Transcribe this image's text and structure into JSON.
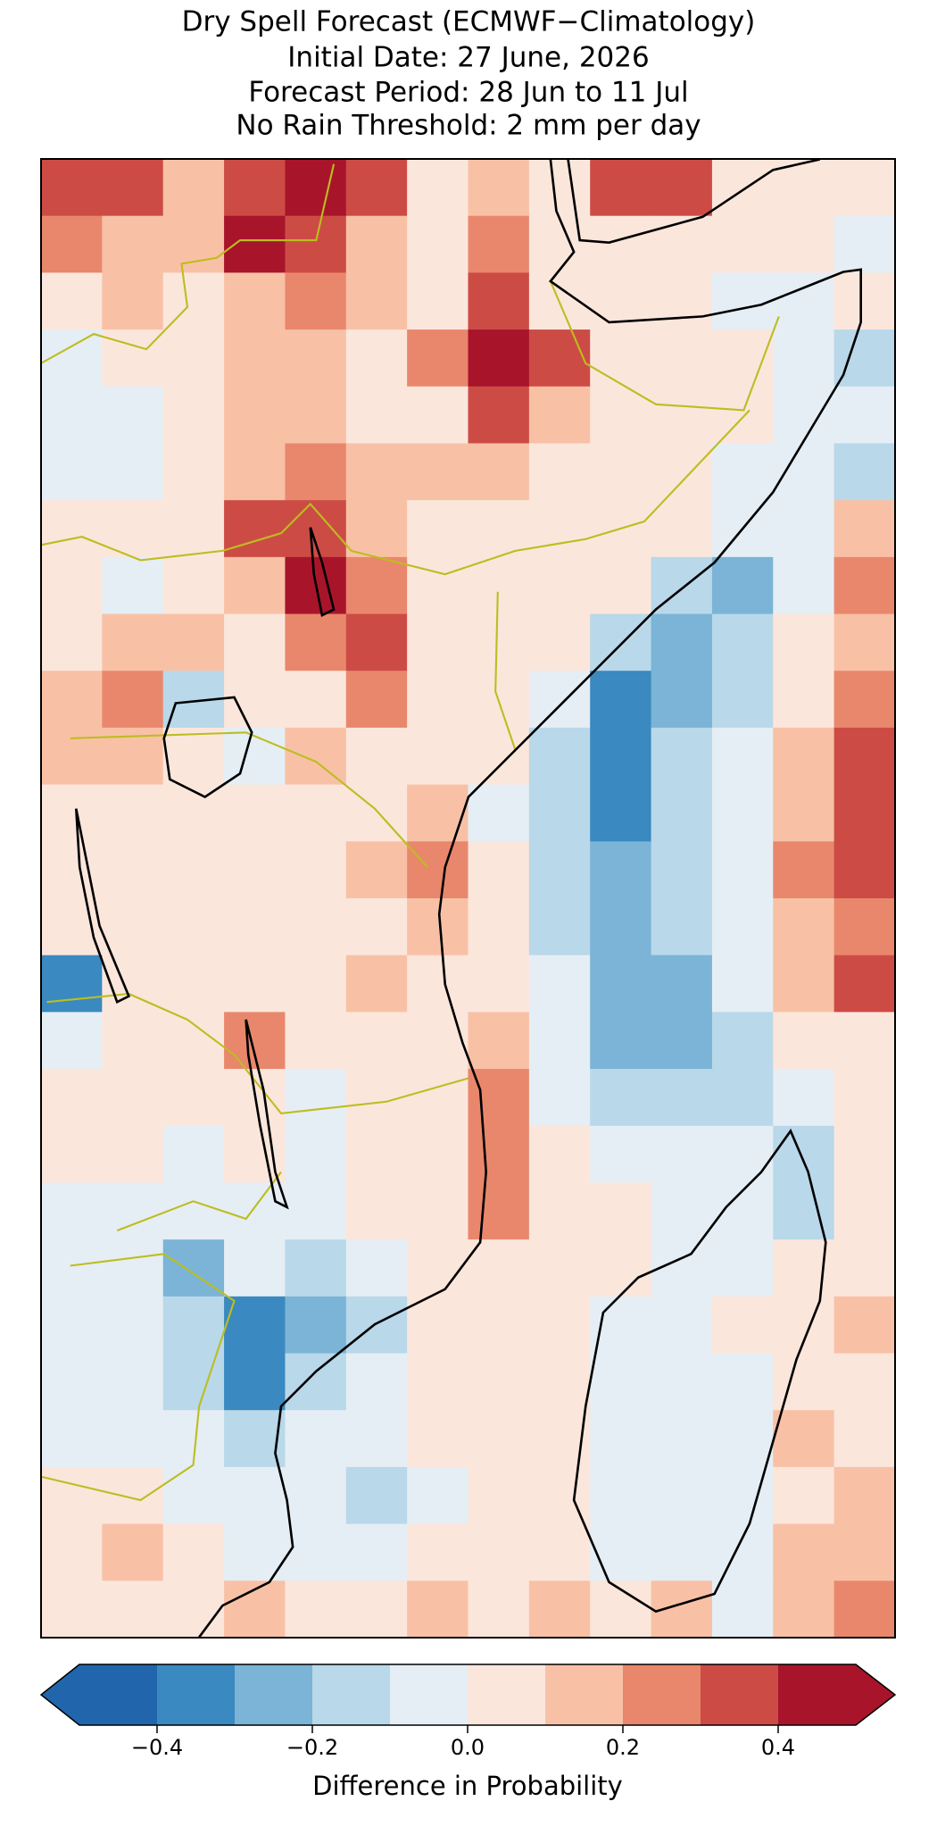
{
  "map": {
    "type": "heatmap",
    "title": [
      "Dry Spell Forecast (ECMWF−Climatology)",
      "Initial Date: 27 June, 2026",
      "Forecast Period: 28 Jun to 11 Jul",
      "No Rain Threshold: 2 mm per day"
    ],
    "values": [
      [
        0.35,
        0.35,
        0.15,
        0.35,
        0.45,
        0.35,
        0.05,
        0.15,
        0.05,
        0.35,
        0.35,
        0.05,
        0.05,
        0.05
      ],
      [
        0.25,
        0.15,
        0.15,
        0.45,
        0.35,
        0.15,
        0.05,
        0.25,
        0.05,
        0.05,
        0.05,
        0.05,
        0.05,
        -0.05
      ],
      [
        0.05,
        0.15,
        0.05,
        0.15,
        0.25,
        0.15,
        0.05,
        0.35,
        0.05,
        0.05,
        0.05,
        -0.05,
        -0.05,
        0.05
      ],
      [
        -0.05,
        0.05,
        0.05,
        0.15,
        0.15,
        0.05,
        0.25,
        0.45,
        0.35,
        0.05,
        0.05,
        0.05,
        -0.05,
        -0.15
      ],
      [
        -0.05,
        -0.05,
        0.05,
        0.15,
        0.15,
        0.05,
        0.05,
        0.35,
        0.15,
        0.05,
        0.05,
        0.05,
        -0.05,
        -0.05
      ],
      [
        -0.05,
        -0.05,
        0.05,
        0.15,
        0.25,
        0.15,
        0.15,
        0.15,
        0.05,
        0.05,
        0.05,
        -0.05,
        -0.05,
        -0.15
      ],
      [
        0.05,
        0.05,
        0.05,
        0.35,
        0.35,
        0.15,
        0.05,
        0.05,
        0.05,
        0.05,
        0.05,
        -0.05,
        -0.05,
        0.15
      ],
      [
        0.05,
        -0.05,
        0.05,
        0.15,
        0.45,
        0.25,
        0.05,
        0.05,
        0.05,
        0.05,
        -0.15,
        -0.25,
        -0.05,
        0.25
      ],
      [
        0.05,
        0.15,
        0.15,
        0.05,
        0.25,
        0.35,
        0.05,
        0.05,
        0.05,
        -0.15,
        -0.25,
        -0.15,
        0.05,
        0.15
      ],
      [
        0.15,
        0.25,
        -0.15,
        0.05,
        0.05,
        0.25,
        0.05,
        0.05,
        -0.05,
        -0.35,
        -0.25,
        -0.15,
        0.05,
        0.25
      ],
      [
        0.15,
        0.15,
        0.05,
        -0.05,
        0.15,
        0.05,
        0.05,
        0.05,
        -0.15,
        -0.35,
        -0.15,
        -0.05,
        0.15,
        0.35
      ],
      [
        0.05,
        0.05,
        0.05,
        0.05,
        0.05,
        0.05,
        0.15,
        -0.05,
        -0.15,
        -0.35,
        -0.15,
        -0.05,
        0.15,
        0.35
      ],
      [
        0.05,
        0.05,
        0.05,
        0.05,
        0.05,
        0.15,
        0.25,
        0.05,
        -0.15,
        -0.25,
        -0.15,
        -0.05,
        0.25,
        0.35
      ],
      [
        0.05,
        0.05,
        0.05,
        0.05,
        0.05,
        0.05,
        0.15,
        0.05,
        -0.15,
        -0.25,
        -0.15,
        -0.05,
        0.15,
        0.25
      ],
      [
        -0.35,
        0.05,
        0.05,
        0.05,
        0.05,
        0.15,
        0.05,
        0.05,
        -0.05,
        -0.25,
        -0.25,
        -0.05,
        0.15,
        0.35
      ],
      [
        -0.05,
        0.05,
        0.05,
        0.25,
        0.05,
        0.05,
        0.05,
        0.15,
        -0.05,
        -0.25,
        -0.25,
        -0.15,
        0.05,
        0.05
      ],
      [
        0.05,
        0.05,
        0.05,
        0.05,
        -0.05,
        0.05,
        0.05,
        0.25,
        -0.05,
        -0.15,
        -0.15,
        -0.15,
        -0.05,
        0.05
      ],
      [
        0.05,
        0.05,
        -0.05,
        0.05,
        -0.05,
        0.05,
        0.05,
        0.25,
        0.05,
        -0.05,
        -0.05,
        -0.05,
        -0.15,
        0.05
      ],
      [
        -0.05,
        -0.05,
        -0.05,
        -0.05,
        -0.05,
        0.05,
        0.05,
        0.25,
        0.05,
        0.05,
        -0.05,
        -0.05,
        -0.15,
        0.05
      ],
      [
        -0.05,
        -0.05,
        -0.25,
        -0.05,
        -0.15,
        -0.05,
        0.05,
        0.05,
        0.05,
        0.05,
        -0.05,
        -0.05,
        0.05,
        0.05
      ],
      [
        -0.05,
        -0.05,
        -0.15,
        -0.35,
        -0.25,
        -0.15,
        0.05,
        0.05,
        0.05,
        -0.05,
        -0.05,
        0.05,
        0.05,
        0.15
      ],
      [
        -0.05,
        -0.05,
        -0.15,
        -0.35,
        -0.15,
        -0.05,
        0.05,
        0.05,
        0.05,
        -0.05,
        -0.05,
        -0.05,
        0.05,
        0.05
      ],
      [
        -0.05,
        -0.05,
        -0.05,
        -0.15,
        -0.05,
        -0.05,
        0.05,
        0.05,
        0.05,
        -0.05,
        -0.05,
        -0.05,
        0.15,
        0.05
      ],
      [
        0.05,
        0.05,
        -0.05,
        -0.05,
        -0.05,
        -0.15,
        -0.05,
        0.05,
        0.05,
        -0.05,
        -0.05,
        -0.05,
        0.05,
        0.15
      ],
      [
        0.05,
        0.15,
        0.05,
        -0.05,
        -0.05,
        -0.05,
        0.05,
        0.05,
        0.05,
        -0.05,
        -0.05,
        -0.05,
        0.15,
        0.15
      ],
      [
        0.05,
        0.05,
        0.05,
        0.15,
        0.05,
        0.05,
        0.15,
        0.05,
        0.15,
        0.05,
        0.15,
        -0.05,
        0.15,
        0.25
      ]
    ],
    "colorbar": {
      "levels": [
        -0.5,
        -0.4,
        -0.3,
        -0.2,
        -0.1,
        0,
        0.1,
        0.2,
        0.3,
        0.4,
        0.5
      ],
      "colors": [
        "#2166ac",
        "#3a89c0",
        "#7bb4d6",
        "#b9d8ea",
        "#e5eef4",
        "#fbe6dc",
        "#f8c1a6",
        "#e9876c",
        "#cc4c45",
        "#a8152b"
      ],
      "ticks": [
        {
          "value": -0.4,
          "label": "−0.4"
        },
        {
          "value": -0.2,
          "label": "−0.2"
        },
        {
          "value": 0,
          "label": "0.0"
        },
        0.2,
        0.4
      ],
      "label": "Difference in Probability"
    }
  }
}
